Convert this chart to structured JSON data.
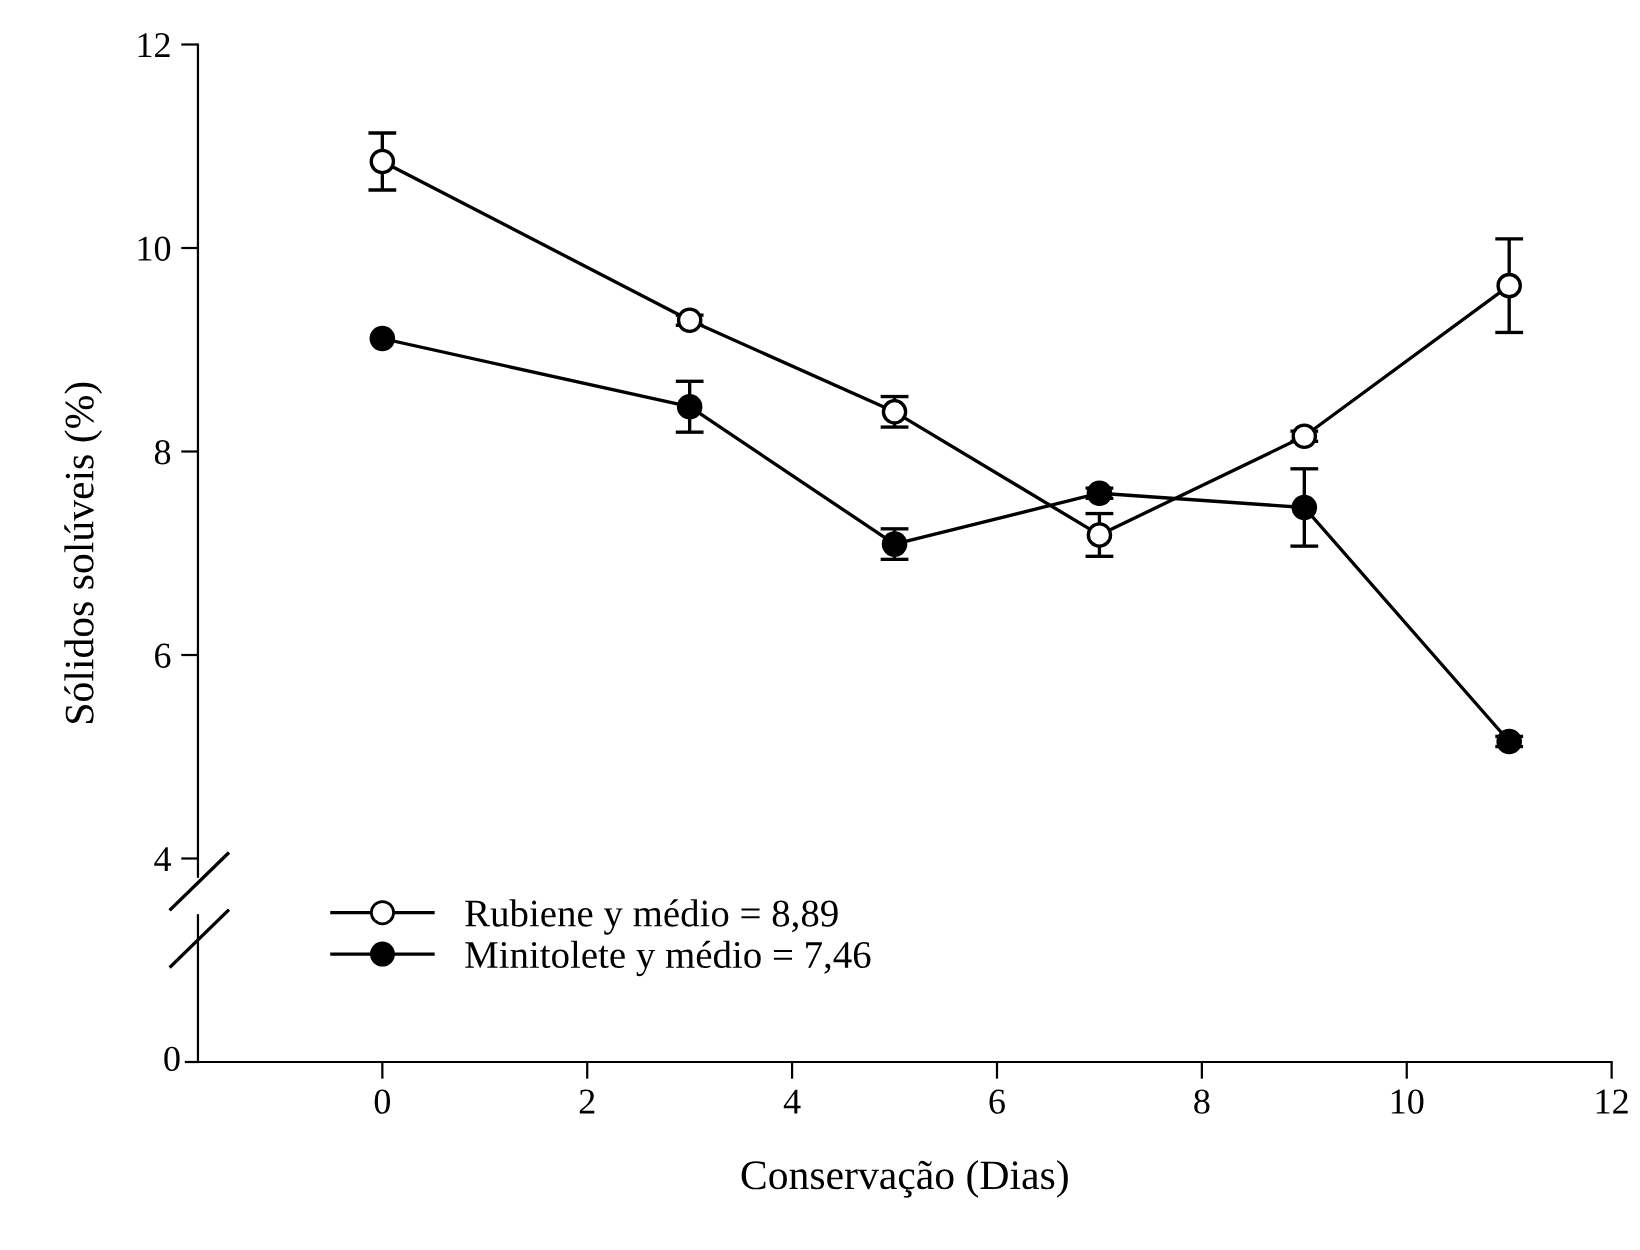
{
  "chart_data": {
    "type": "line",
    "xlabel": "Conservação (Dias)",
    "ylabel": "Sólidos solúveis (%)",
    "x": [
      0,
      3,
      5,
      7,
      9,
      11
    ],
    "xlim": [
      -1.8,
      12
    ],
    "xticks": [
      0,
      2,
      4,
      6,
      8,
      10,
      12
    ],
    "ylim": [
      2,
      12
    ],
    "yticks": [
      4,
      6,
      8,
      10,
      12
    ],
    "annotations": [
      "0"
    ],
    "grid": false,
    "legend": "bottom left",
    "line_style": "solid",
    "marker": "circle",
    "series": [
      {
        "name": "Rubiene y médio = 8,89",
        "color": "#000000",
        "values": [
          10.85,
          9.29,
          8.39,
          7.18,
          8.15,
          9.63
        ],
        "errors": [
          0.28,
          0.05,
          0.15,
          0.21,
          0.05,
          0.46
        ]
      },
      {
        "name": "Minitolete y médio = 7,46",
        "color": "#000000",
        "values": [
          9.11,
          8.44,
          7.09,
          7.59,
          7.45,
          5.15
        ],
        "errors": [
          null,
          0.25,
          0.15,
          0.05,
          0.38,
          0.05
        ]
      }
    ]
  }
}
